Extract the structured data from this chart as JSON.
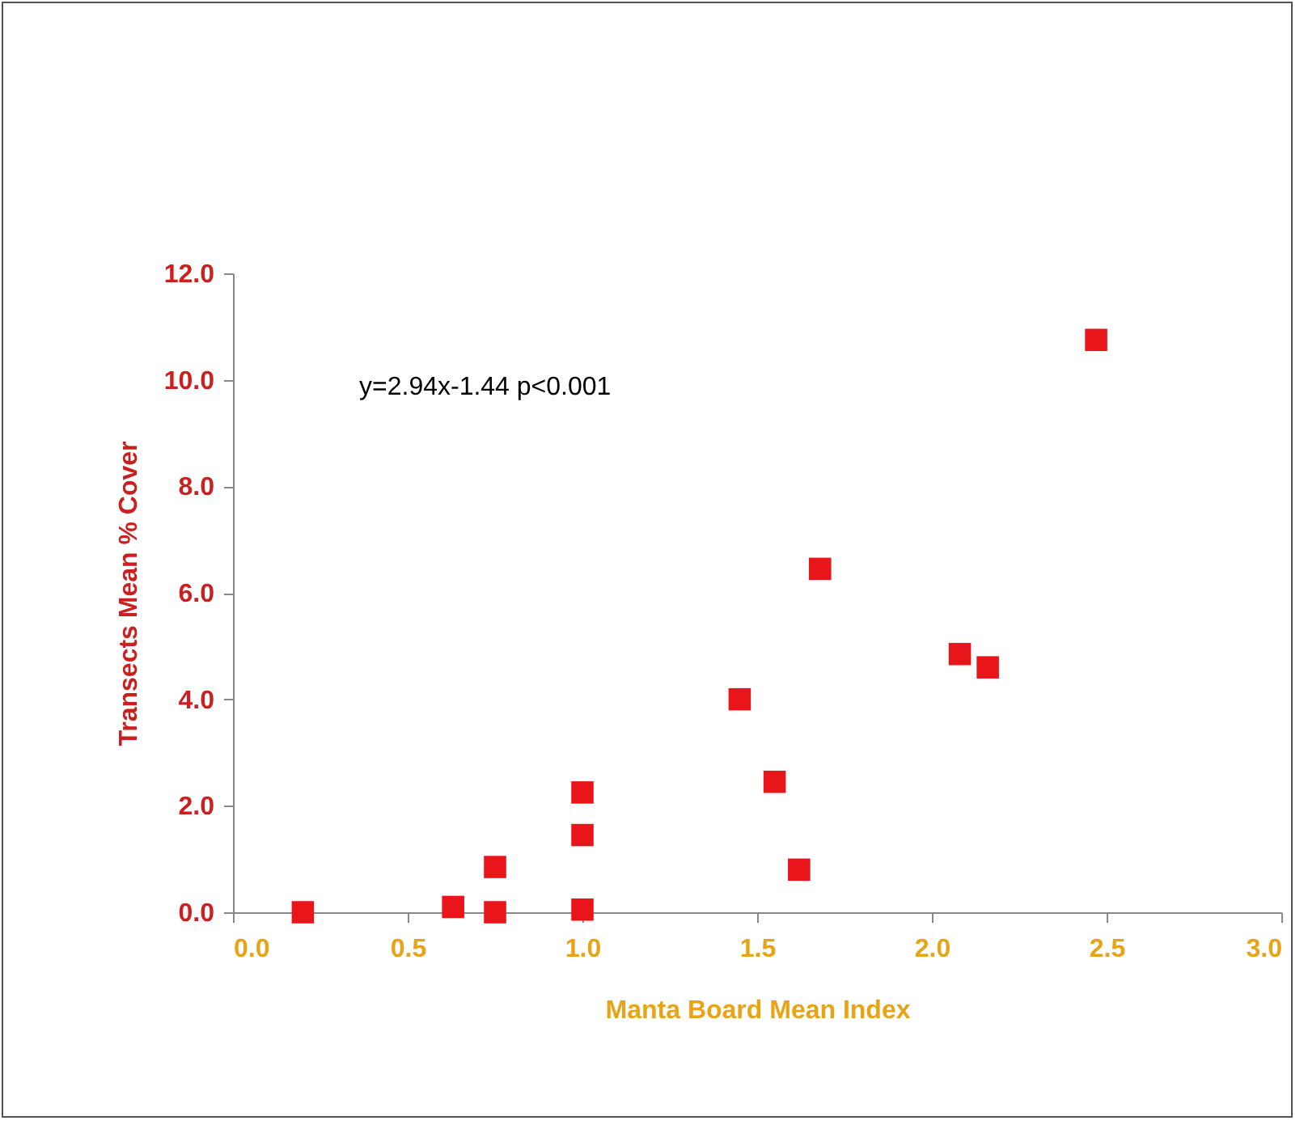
{
  "chart_data": {
    "type": "scatter",
    "xlabel": "Manta Board Mean Index",
    "ylabel": "Transects Mean %  Cover",
    "annotations": [
      "y=2.94x-1.44  p<0.001"
    ],
    "x": [
      0.2,
      0.63,
      0.75,
      0.75,
      1.0,
      1.0,
      1.0,
      1.45,
      1.55,
      1.62,
      1.68,
      2.08,
      2.16,
      2.47
    ],
    "series": [
      {
        "color": "#e8161b",
        "values": [
          0,
          0.1,
          0.85,
          0,
          2.25,
          1.45,
          0.05,
          4.0,
          2.45,
          0.8,
          6.45,
          4.85,
          4.6,
          10.75
        ]
      }
    ],
    "marker": "square",
    "xlim": [
      0,
      3
    ],
    "xticks": [
      {
        "value": 0,
        "label": "0.0"
      },
      {
        "value": 0.5,
        "label": "0.5"
      },
      {
        "value": 1,
        "label": "1.0"
      },
      {
        "value": 1.5,
        "label": "1.5"
      },
      {
        "value": 2,
        "label": "2.0"
      },
      {
        "value": 2.5,
        "label": "2.5"
      },
      {
        "value": 3,
        "label": "3.0"
      }
    ],
    "ylim": [
      0,
      12
    ],
    "yticks": [
      {
        "value": 0,
        "label": "0.0"
      },
      {
        "value": 2,
        "label": "2.0"
      },
      {
        "value": 4,
        "label": "4.0"
      },
      {
        "value": 6,
        "label": "6.0"
      },
      {
        "value": 8,
        "label": "8.0"
      },
      {
        "value": 10,
        "label": "10.0"
      },
      {
        "value": 12,
        "label": "12.0"
      }
    ],
    "grid": false,
    "legend": false
  }
}
